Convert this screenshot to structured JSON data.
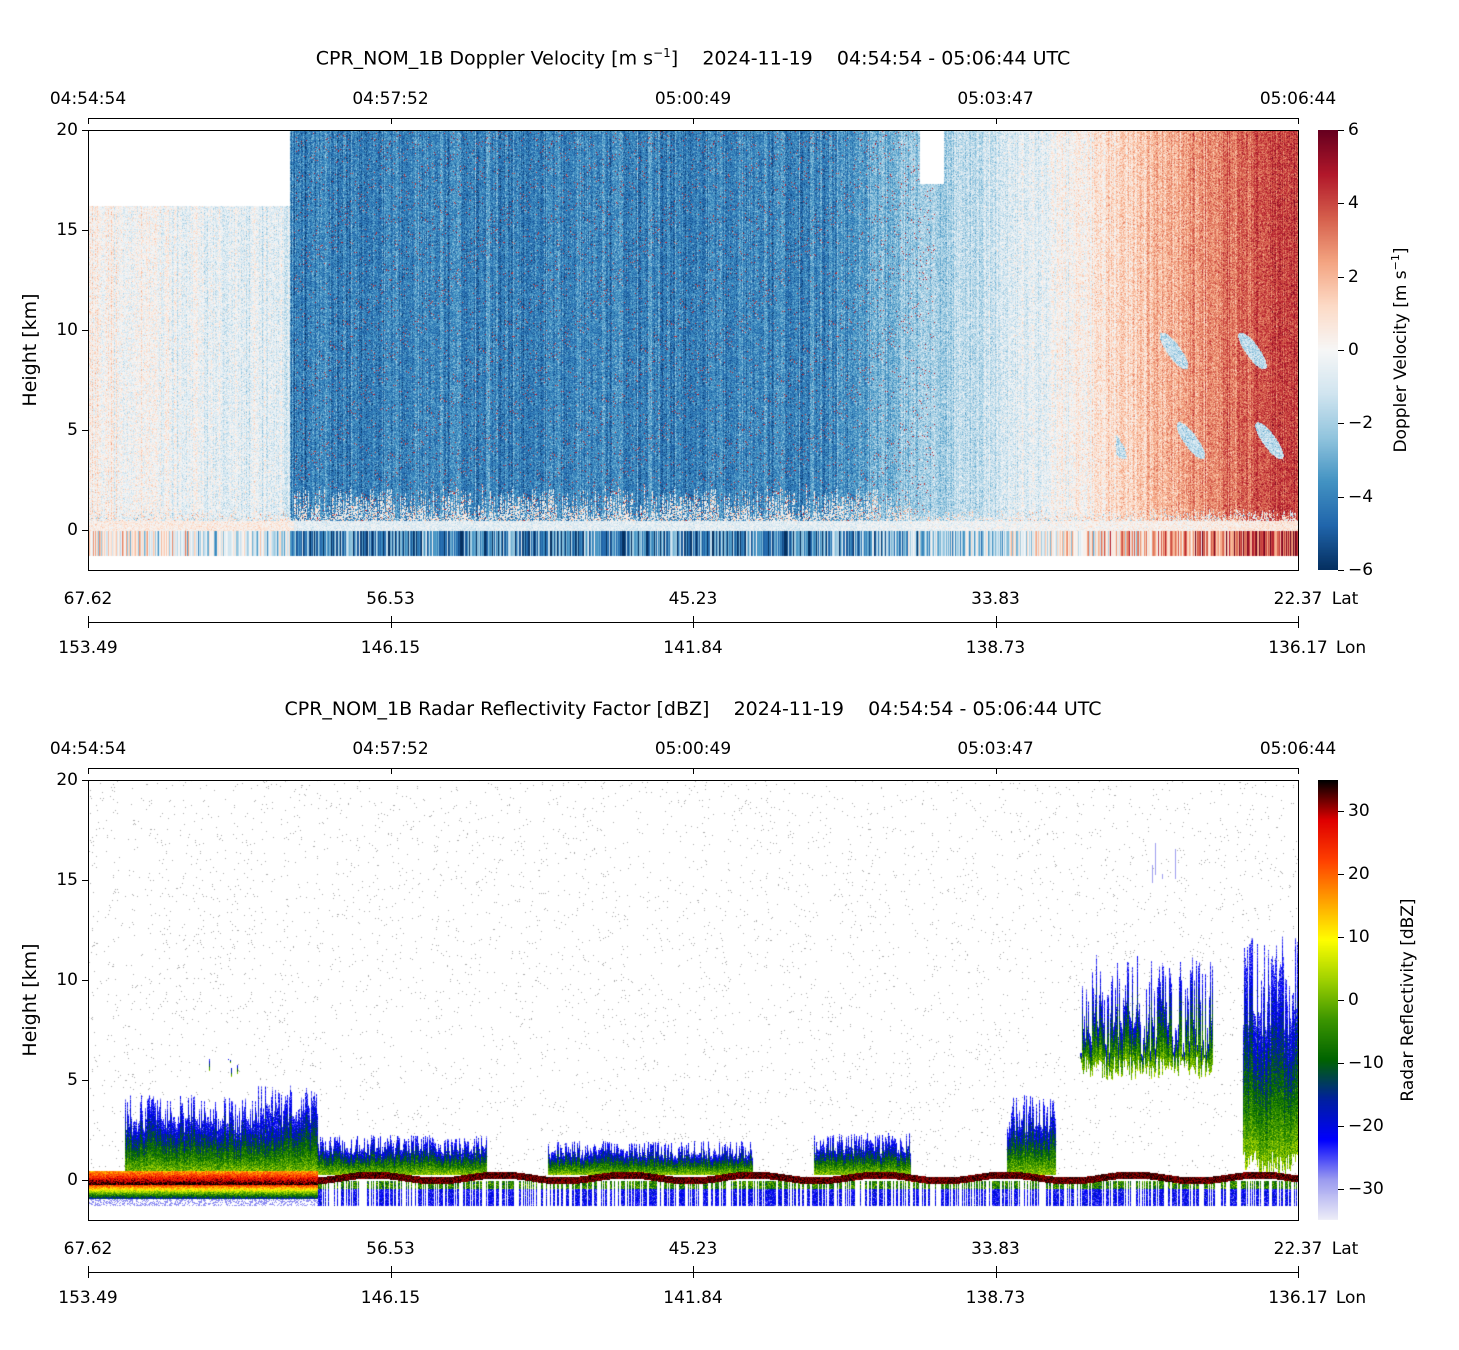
{
  "chart_data": [
    {
      "type": "heatmap",
      "title": {
        "prefix": "CPR_NOM_1B Doppler Velocity [m s",
        "sup": "−1",
        "suffix": "]",
        "date": "2024-11-19",
        "time_range": "04:54:54 - 05:06:44 UTC"
      },
      "ylabel": "Height [km]",
      "ylim": [
        -2,
        20
      ],
      "yticks": {
        "labels": [
          "20",
          "15",
          "10",
          "5",
          "0"
        ],
        "values": [
          20,
          15,
          10,
          5,
          0
        ]
      },
      "time_ticks": [
        "04:54:54",
        "04:57:52",
        "05:00:49",
        "05:03:47",
        "05:06:44"
      ],
      "lat_ticks": [
        "67.62",
        "56.53",
        "45.23",
        "33.83",
        "22.37"
      ],
      "lat_label": "Lat",
      "lon_ticks": [
        "153.49",
        "146.15",
        "141.84",
        "138.73",
        "136.17"
      ],
      "lon_label": "Lon",
      "colorbar": {
        "label": {
          "prefix": "Doppler Velocity [m s",
          "sup": "−1",
          "suffix": "]"
        },
        "range": [
          -6,
          6
        ],
        "ticks": {
          "labels": [
            "6",
            "4",
            "2",
            "0",
            "−2",
            "−4",
            "−6"
          ],
          "values": [
            6,
            4,
            2,
            0,
            -2,
            -4,
            -6
          ]
        },
        "colormap": [
          "#053061",
          "#2166ac",
          "#4393c3",
          "#92c5de",
          "#d1e5f0",
          "#f7f7f7",
          "#fddbc7",
          "#f4a582",
          "#d6604d",
          "#b2182b",
          "#67001f"
        ]
      },
      "field_segments": [
        {
          "t_range": [
            0.0,
            0.167
          ],
          "velocity": [
            0.3,
            -0.8
          ],
          "echo_top_km": 16.2
        },
        {
          "t_range": [
            0.167,
            0.6
          ],
          "velocity": [
            -4.0,
            -4.0
          ],
          "echo_top_km": 20
        },
        {
          "t_range": [
            0.6,
            0.78
          ],
          "velocity": [
            -4.0,
            -0.5
          ],
          "echo_top_km": 20
        },
        {
          "t_range": [
            0.78,
            1.0
          ],
          "velocity": [
            -0.5,
            4.5
          ],
          "echo_top_km": 20
        }
      ]
    },
    {
      "type": "heatmap",
      "title": {
        "prefix": "CPR_NOM_1B Radar Reflectivity Factor [dBZ]",
        "date": "2024-11-19",
        "time_range": "04:54:54 - 05:06:44 UTC"
      },
      "ylabel": "Height [km]",
      "ylim": [
        -2,
        20
      ],
      "yticks": {
        "labels": [
          "20",
          "15",
          "10",
          "5",
          "0"
        ],
        "values": [
          20,
          15,
          10,
          5,
          0
        ]
      },
      "time_ticks": [
        "04:54:54",
        "04:57:52",
        "05:00:49",
        "05:03:47",
        "05:06:44"
      ],
      "lat_ticks": [
        "67.62",
        "56.53",
        "45.23",
        "33.83",
        "22.37"
      ],
      "lat_label": "Lat",
      "lon_ticks": [
        "153.49",
        "146.15",
        "141.84",
        "138.73",
        "136.17"
      ],
      "lon_label": "Lon",
      "colorbar": {
        "label": "Radar Reflectivity [dBZ]",
        "range": [
          -35,
          35
        ],
        "ticks": {
          "labels": [
            "30",
            "20",
            "10",
            "0",
            "−10",
            "−20",
            "−30"
          ],
          "values": [
            30,
            20,
            10,
            0,
            -10,
            -20,
            -30
          ]
        },
        "colormap": [
          "#eeeef8",
          "#9b9bf0",
          "#0000ff",
          "#0020a0",
          "#006400",
          "#3c9600",
          "#a0d200",
          "#ffff00",
          "#ffa000",
          "#ff4000",
          "#e00000",
          "#000000"
        ]
      },
      "clouds": [
        {
          "t_range": [
            0.03,
            0.16
          ],
          "top_km": 4.3
        },
        {
          "t_range": [
            0.1,
            0.125
          ],
          "base_km": 5.0,
          "top_km": 6.1
        },
        {
          "t_range": [
            0.14,
            0.19
          ],
          "top_km": 4.8
        },
        {
          "t_range": [
            0.19,
            0.33
          ],
          "top_km": 2.3
        },
        {
          "t_range": [
            0.38,
            0.55
          ],
          "top_km": 2.0
        },
        {
          "t_range": [
            0.6,
            0.68
          ],
          "top_km": 2.4
        },
        {
          "t_range": [
            0.76,
            0.8
          ],
          "top_km": 4.3
        },
        {
          "t_range": [
            0.82,
            0.93
          ],
          "base_km": 5.0,
          "top_km": 11.3
        },
        {
          "t_range": [
            0.88,
            0.9
          ],
          "base_km": 14.5,
          "top_km": 17.3
        },
        {
          "t_range": [
            0.955,
            1.0
          ],
          "base_km": 0.3,
          "top_km": 12.3
        }
      ]
    }
  ]
}
